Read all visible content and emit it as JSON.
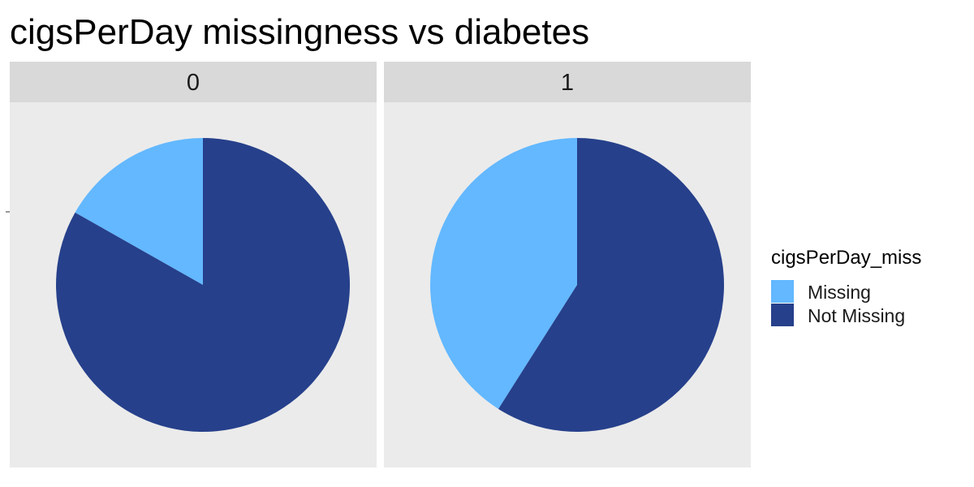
{
  "chart_data": {
    "type": "pie",
    "title": "cigsPerDay missingness vs diabetes",
    "facets": [
      {
        "label": "0",
        "slices": [
          {
            "name": "Missing",
            "value": 0.168
          },
          {
            "name": "Not Missing",
            "value": 0.832
          }
        ]
      },
      {
        "label": "1",
        "slices": [
          {
            "name": "Missing",
            "value": 0.41
          },
          {
            "name": "Not Missing",
            "value": 0.59
          }
        ]
      }
    ],
    "legend": {
      "title": "cigsPerDay_miss",
      "position": "right",
      "entries": [
        {
          "label": "Missing",
          "color": "#63b8ff"
        },
        {
          "label": "Not Missing",
          "color": "#26408b"
        }
      ]
    },
    "colors": {
      "panel_background": "#ebebeb",
      "strip_background": "#d9d9d9"
    }
  }
}
